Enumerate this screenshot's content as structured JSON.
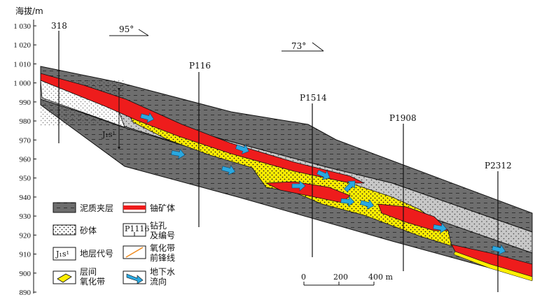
{
  "yaxis": {
    "title": "海拔/m",
    "ticks": [
      "1 030",
      "1 020",
      "1 010",
      "1 000",
      "990",
      "980",
      "970",
      "960",
      "950",
      "940",
      "930",
      "920",
      "910",
      "900",
      "890"
    ],
    "tick_values": [
      1030,
      1020,
      1010,
      1000,
      990,
      980,
      970,
      960,
      950,
      940,
      930,
      920,
      910,
      900,
      890
    ]
  },
  "boreholes": [
    "318",
    "P116",
    "P1514",
    "P1908",
    "P2312"
  ],
  "dips": [
    "95°",
    "73°"
  ],
  "stratum_code": "J₁s¹",
  "scale": {
    "labels": [
      "0",
      "200",
      "400 m"
    ]
  },
  "legend": {
    "mudstone": "泥质夹层",
    "ore": "铀矿体",
    "sand": "砂体",
    "drill_code": "P1116",
    "drill_line1": "钻孔",
    "drill_line2": "及编号",
    "stratum_code": "J₁s¹",
    "stratum": "地层代号",
    "front_line1": "氧化带",
    "front_line2": "前锋线",
    "interlayer_line1": "层间",
    "interlayer_line2": "氧化带",
    "water_line1": "地下水",
    "water_line2": "流向"
  },
  "colors": {
    "mudstone": "#6e6e6e",
    "sand": "#c8c8c8",
    "ore": "#ee1c1c",
    "oxidized": "#ffee00",
    "water": "#2aa8e0",
    "front": "#f08a1c"
  }
}
